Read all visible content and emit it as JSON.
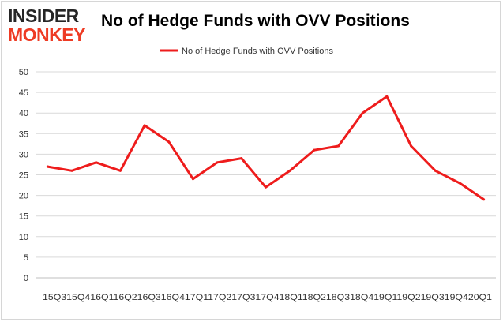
{
  "logo": {
    "line1": "INSIDER",
    "line2": "MONKEY"
  },
  "colors": {
    "series": "#ee1c1c",
    "grid": "#d9d9d9",
    "axis": "#bfbfbf",
    "brand_red": "#ee3b24",
    "brand_dark": "#262626"
  },
  "chart_data": {
    "type": "line",
    "title": "No of Hedge Funds with OVV Positions",
    "categories": [
      "2015Q3",
      "2015Q4",
      "2016Q1",
      "2016Q2",
      "2016Q3",
      "2016Q4",
      "2017Q1",
      "2017Q2",
      "2017Q3",
      "2017Q4",
      "2018Q1",
      "2018Q2",
      "2018Q3",
      "2018Q4",
      "2019Q1",
      "2019Q2",
      "2019Q3",
      "2019Q4",
      "2020Q1"
    ],
    "x_tick_text": "15Q315Q416Q116Q216Q316Q417Q117Q217Q317Q418Q118Q218Q318Q419Q119Q219Q319Q420Q1",
    "series": [
      {
        "name": "No of Hedge Funds with OVV Positions",
        "values": [
          27,
          26,
          28,
          26,
          37,
          33,
          24,
          28,
          29,
          22,
          26,
          31,
          32,
          40,
          44,
          32,
          26,
          23,
          19
        ]
      }
    ],
    "ylim": [
      0,
      50
    ],
    "yticks": [
      0,
      5,
      10,
      15,
      20,
      25,
      30,
      35,
      40,
      45,
      50
    ],
    "grid": true,
    "legend": "top-center"
  }
}
